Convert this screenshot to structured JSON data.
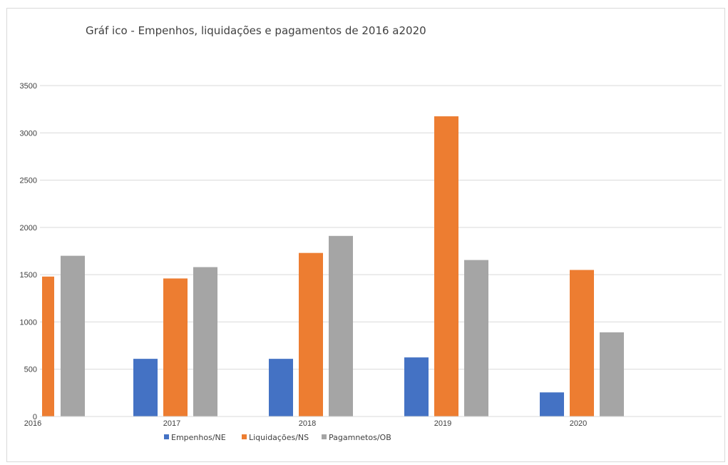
{
  "chart_data": {
    "type": "bar",
    "title": "Gráf ico - Empenhos, liquidações e pagamentos de 2016 a2020",
    "xlabel": "",
    "ylabel": "",
    "categories": [
      "2016",
      "2017",
      "2018",
      "2019",
      "2020"
    ],
    "series": [
      {
        "name": "Empenhos/NE",
        "color": "#4472c4",
        "values": [
          0,
          610,
          610,
          625,
          255
        ]
      },
      {
        "name": "Liquidações/NS",
        "color": "#ed7d31",
        "values": [
          1480,
          1460,
          1730,
          3175,
          1550
        ]
      },
      {
        "name": "Pagamnetos/OB",
        "color": "#a5a5a5",
        "values": [
          1700,
          1580,
          1910,
          1655,
          890
        ]
      }
    ],
    "ylim": [
      0,
      3500
    ],
    "yticks": [
      0,
      500,
      1000,
      1500,
      2000,
      2500,
      3000,
      3500
    ],
    "grid": true,
    "legend_position": "bottom"
  }
}
